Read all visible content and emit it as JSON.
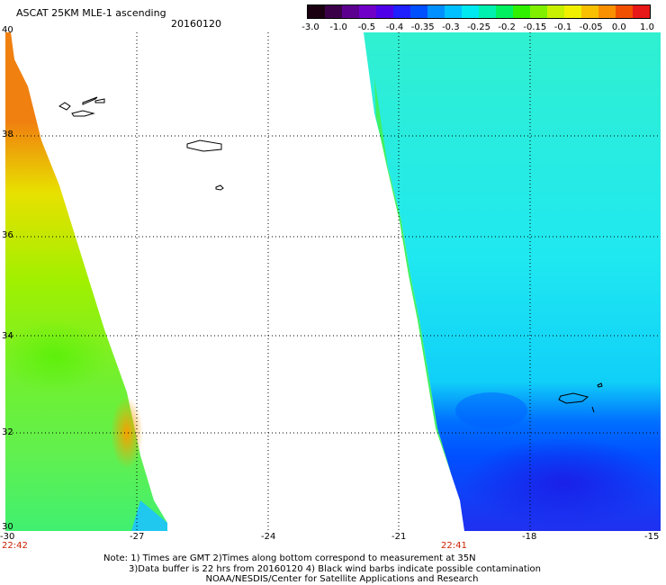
{
  "header": {
    "title": "ASCAT 25KM MLE-1 ascending",
    "date": "20160120"
  },
  "colorbar": {
    "labels": [
      "-3.0",
      "-1.0",
      "-0.5",
      "-0.4",
      "-0.35",
      "-0.3",
      "-0.25",
      "-0.2",
      "-0.15",
      "-0.1",
      "-0.05",
      "0.0",
      "1.0"
    ],
    "colors": [
      "#1a0010",
      "#3a0048",
      "#5c0090",
      "#7000c8",
      "#5000e8",
      "#2020ff",
      "#0050ff",
      "#0090ff",
      "#00c0ff",
      "#00e8f0",
      "#00f0b0",
      "#00f060",
      "#30f000",
      "#80f000",
      "#c8f000",
      "#f0f000",
      "#f8c000",
      "#f89000",
      "#f05000",
      "#e81818"
    ]
  },
  "map": {
    "y_ticks": [
      "40",
      "38",
      "36",
      "34",
      "32",
      "30"
    ],
    "x_ticks": [
      "-30",
      "-27",
      "-24",
      "-21",
      "-18",
      "-15"
    ],
    "time_left": "22:42",
    "time_right": "22:41",
    "lat_range": [
      30,
      40
    ],
    "lon_range": [
      -30,
      -15
    ]
  },
  "footer": {
    "note_line1": "Note: 1) Times are GMT 2)Times along bottom correspond to measurement at 35N",
    "note_line2": "3)Data buffer is 22 hrs from 20160120 4) Black wind barbs indicate possible contamination",
    "credit": "NOAA/NESDIS/Center for Satellite Applications and Research"
  }
}
